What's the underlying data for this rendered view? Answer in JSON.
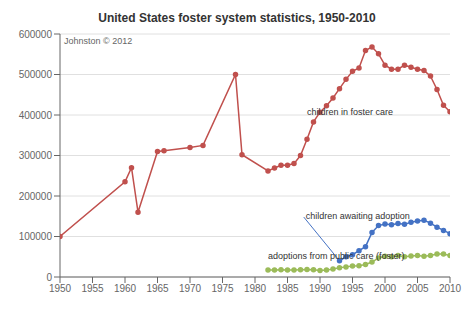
{
  "chart_data": {
    "type": "line",
    "title": "United States foster system statistics, 1950-2010",
    "xlim": [
      1950,
      2010
    ],
    "xticks": [
      1950,
      1955,
      1960,
      1965,
      1970,
      1975,
      1980,
      1985,
      1990,
      1995,
      2000,
      2005,
      2010
    ],
    "ylim": [
      0,
      600000
    ],
    "yticks": [
      0,
      100000,
      200000,
      300000,
      400000,
      500000,
      600000
    ],
    "grid": "y",
    "marker": "circle",
    "series": [
      {
        "color": "#c0504d",
        "x": [
          1950,
          1960,
          1961,
          1962,
          1965,
          1966,
          1970,
          1972,
          1977,
          1978,
          1982,
          1983,
          1984,
          1985,
          1986,
          1987,
          1988,
          1989,
          1990,
          1991,
          1992,
          1993,
          1994,
          1995,
          1996,
          1997,
          1998,
          1999,
          2000,
          2001,
          2002,
          2003,
          2004,
          2005,
          2006,
          2007,
          2008,
          2009,
          2010
        ],
        "values": [
          100000,
          235000,
          270000,
          160000,
          310000,
          312000,
          320000,
          325000,
          500000,
          302000,
          262000,
          269000,
          276000,
          276000,
          280000,
          300000,
          340000,
          383000,
          407000,
          423000,
          442000,
          465000,
          488000,
          508000,
          516000,
          559000,
          568000,
          551000,
          523000,
          513000,
          513000,
          523000,
          518000,
          513000,
          510000,
          496000,
          463000,
          424000,
          408000
        ]
      },
      {
        "color": "#4472c4",
        "x": [
          1993,
          1994,
          1995,
          1996,
          1997,
          1998,
          1999,
          2000,
          2001,
          2002,
          2003,
          2004,
          2005,
          2006,
          2007,
          2008,
          2009,
          2010
        ],
        "values": [
          40000,
          50000,
          55000,
          65000,
          75000,
          110000,
          127000,
          131000,
          129000,
          132000,
          130000,
          135000,
          138000,
          140000,
          133000,
          123000,
          115000,
          107000
        ]
      },
      {
        "color": "#9bbb59",
        "x": [
          1982,
          1983,
          1984,
          1985,
          1986,
          1987,
          1988,
          1989,
          1990,
          1991,
          1992,
          1993,
          1994,
          1995,
          1996,
          1997,
          1998,
          1999,
          2000,
          2001,
          2002,
          2003,
          2004,
          2005,
          2006,
          2007,
          2008,
          2009,
          2010
        ],
        "values": [
          17000,
          17500,
          18000,
          17000,
          17500,
          18000,
          18500,
          18000,
          16000,
          17000,
          20000,
          23000,
          25000,
          27000,
          28000,
          31000,
          37000,
          47000,
          51000,
          50000,
          53000,
          50000,
          52000,
          53000,
          51000,
          53000,
          57000,
          57000,
          53000
        ]
      }
    ],
    "annotations": [
      {
        "text": "Johnston © 2012"
      },
      {
        "text": "children in foster care",
        "x": 1988,
        "y": 395000
      },
      {
        "text": "children awaiting adoption",
        "x": 1987.5,
        "y": 148000,
        "arrow_x": 1993,
        "arrow_y": 40000
      },
      {
        "text": "adoptions from public care (foster)",
        "x": 1982,
        "y": 40000
      }
    ]
  }
}
